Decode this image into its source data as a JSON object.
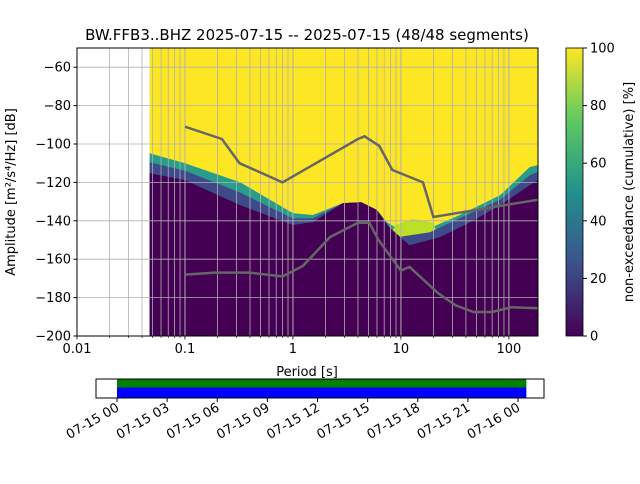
{
  "chart_data": {
    "type": "heatmap",
    "title": "BW.FFB3..BHZ   2025-07-15 -- 2025-07-15  (48/48 segments)",
    "xlabel": "Period [s]",
    "ylabel": "Amplitude [m²/s⁴/Hz] [dB]",
    "xscale": "log",
    "xlim": [
      0.01,
      186
    ],
    "ylim": [
      -200,
      -50
    ],
    "xticks": [
      {
        "v": 0.01,
        "label": "0.01"
      },
      {
        "v": 0.1,
        "label": "0.1"
      },
      {
        "v": 1,
        "label": "1"
      },
      {
        "v": 10,
        "label": "10"
      },
      {
        "v": 100,
        "label": "100"
      }
    ],
    "yticks": [
      {
        "v": -60,
        "label": "−60"
      },
      {
        "v": -80,
        "label": "−80"
      },
      {
        "v": -100,
        "label": "−100"
      },
      {
        "v": -120,
        "label": "−120"
      },
      {
        "v": -140,
        "label": "−140"
      },
      {
        "v": -160,
        "label": "−160"
      },
      {
        "v": -180,
        "label": "−180"
      },
      {
        "v": -200,
        "label": "−200"
      }
    ],
    "grid": true,
    "data_min_period": 0.047,
    "upper_boundary_100pct": [
      [
        0.047,
        -104.8
      ],
      [
        0.1,
        -110
      ],
      [
        0.324,
        -119.9
      ],
      [
        1.0,
        -136
      ],
      [
        1.53,
        -137
      ],
      [
        2.9,
        -130.8
      ],
      [
        4.3,
        -130.3
      ],
      [
        6.0,
        -134.4
      ],
      [
        7.4,
        -140.7
      ],
      [
        9.8,
        -144.8
      ],
      [
        18.6,
        -143.8
      ],
      [
        35,
        -137
      ],
      [
        83,
        -126.6
      ],
      [
        156,
        -112
      ],
      [
        186,
        -111
      ]
    ],
    "lower_boundary_0pct": [
      [
        0.047,
        -115.2
      ],
      [
        0.1,
        -118.8
      ],
      [
        0.324,
        -131.8
      ],
      [
        1.0,
        -142.2
      ],
      [
        1.53,
        -140.7
      ],
      [
        2.9,
        -130.8
      ],
      [
        4.3,
        -130.3
      ],
      [
        6.0,
        -134.4
      ],
      [
        7.9,
        -143.8
      ],
      [
        12,
        -152.7
      ],
      [
        23,
        -148.5
      ],
      [
        44,
        -140.7
      ],
      [
        83,
        -131.8
      ],
      [
        156,
        -121.4
      ],
      [
        186,
        -118.8
      ]
    ],
    "series": [
      {
        "name": "NHNM",
        "values": [
          [
            0.1,
            -91
          ],
          [
            0.22,
            -97.4
          ],
          [
            0.32,
            -110
          ],
          [
            0.8,
            -120
          ],
          [
            4.0,
            -97.4
          ],
          [
            4.6,
            -96
          ],
          [
            6.3,
            -101
          ],
          [
            8.3,
            -113.5
          ],
          [
            16,
            -120
          ],
          [
            20,
            -138
          ],
          [
            186,
            -129
          ]
        ]
      },
      {
        "name": "NLNM",
        "values": [
          [
            0.1,
            -168
          ],
          [
            0.19,
            -167
          ],
          [
            0.4,
            -167
          ],
          [
            0.8,
            -169
          ],
          [
            1.24,
            -163.5
          ],
          [
            2.2,
            -148.5
          ],
          [
            4,
            -141
          ],
          [
            5.1,
            -141
          ],
          [
            6.2,
            -150
          ],
          [
            10,
            -166
          ],
          [
            12,
            -164
          ],
          [
            22,
            -177.6
          ],
          [
            32,
            -184
          ],
          [
            47,
            -187.5
          ],
          [
            70,
            -187.5
          ],
          [
            106,
            -185
          ],
          [
            186,
            -185.5
          ]
        ]
      }
    ],
    "colorbar": {
      "label": "non-exceedance (cumulative) [%]",
      "range": [
        0,
        100
      ],
      "ticks": [
        "0",
        "20",
        "40",
        "60",
        "80",
        "100"
      ],
      "colormap": "viridis"
    },
    "timeline": {
      "ticks": [
        "07-15 00",
        "07-15 03",
        "07-15 06",
        "07-15 09",
        "07-15 12",
        "07-15 15",
        "07-15 18",
        "07-15 21",
        "07-16 00"
      ],
      "coverage_start_hours": 0,
      "coverage_end_hours": 24.5,
      "colors": {
        "top": "#008000",
        "bottom": "#0000ff"
      }
    }
  }
}
